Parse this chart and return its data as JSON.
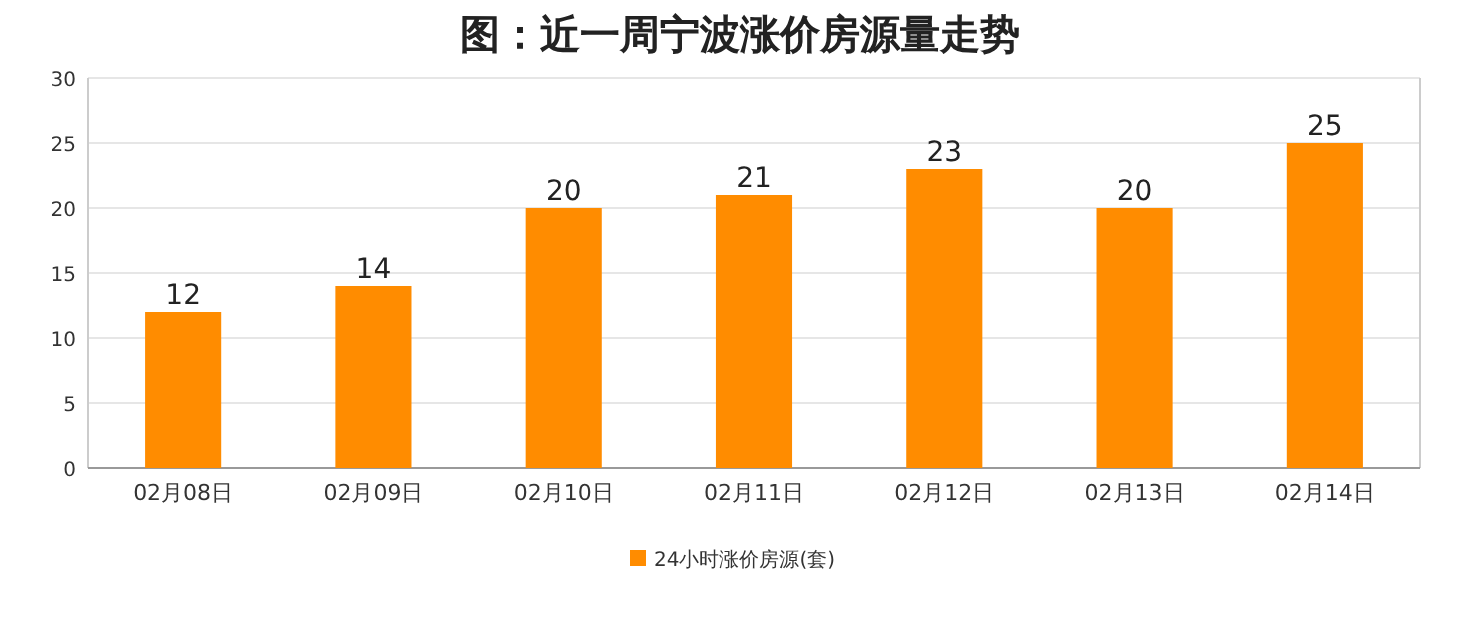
{
  "chart_data": {
    "type": "bar",
    "title": "图：近一周宁波涨价房源量走势",
    "categories": [
      "02月08日",
      "02月09日",
      "02月10日",
      "02月11日",
      "02月12日",
      "02月13日",
      "02月14日"
    ],
    "series": [
      {
        "name": "24小时涨价房源(套)",
        "color": "#ff8c00",
        "values": [
          12,
          14,
          20,
          21,
          23,
          20,
          25
        ]
      }
    ],
    "ylim": [
      0,
      30
    ],
    "yticks": [
      0,
      5,
      10,
      15,
      20,
      25,
      30
    ],
    "grid": "y",
    "legend": "bottom",
    "data_labels": true
  }
}
